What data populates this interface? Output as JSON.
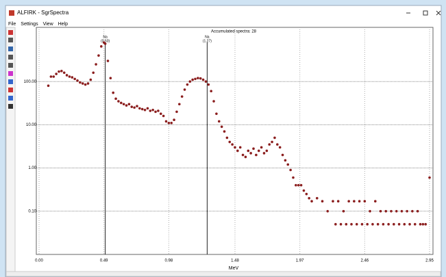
{
  "window": {
    "title": "ALFIRK - SgrSpectra",
    "menu": [
      "File",
      "Settings",
      "View",
      "Help"
    ]
  },
  "chart_data": {
    "type": "scatter",
    "title": "Accumulated spectra: 28",
    "x_label": "MeV",
    "color": "#8b1e1e",
    "log_y": true,
    "grid": true,
    "xlim": [
      0,
      2.95
    ],
    "ylim": [
      0.01,
      1000
    ],
    "xticks": [
      {
        "value": 0,
        "label": "0.00"
      },
      0.49,
      0.98,
      1.48,
      1.97,
      2.46,
      2.95
    ],
    "yticks": [
      {
        "value": 0.1,
        "label": "0.10"
      },
      {
        "value": 1,
        "label": "1.00"
      },
      {
        "value": 10,
        "label": "10.00"
      },
      {
        "value": 100,
        "label": "100.00"
      }
    ],
    "markers": [
      {
        "x": 0.5,
        "label": "Na",
        "sublabel": "(0.50)"
      },
      {
        "x": 1.27,
        "label": "Na",
        "sublabel": "(1.27)"
      }
    ],
    "x": [
      0.07,
      0.09,
      0.11,
      0.13,
      0.15,
      0.17,
      0.19,
      0.21,
      0.23,
      0.25,
      0.27,
      0.29,
      0.31,
      0.33,
      0.35,
      0.37,
      0.39,
      0.41,
      0.43,
      0.45,
      0.47,
      0.49,
      0.5,
      0.52,
      0.54,
      0.56,
      0.58,
      0.6,
      0.62,
      0.64,
      0.66,
      0.68,
      0.7,
      0.72,
      0.74,
      0.76,
      0.78,
      0.8,
      0.82,
      0.84,
      0.86,
      0.88,
      0.9,
      0.92,
      0.94,
      0.96,
      0.98,
      1.0,
      1.02,
      1.04,
      1.06,
      1.08,
      1.1,
      1.12,
      1.14,
      1.16,
      1.18,
      1.2,
      1.22,
      1.24,
      1.26,
      1.28,
      1.3,
      1.32,
      1.34,
      1.36,
      1.38,
      1.4,
      1.42,
      1.44,
      1.46,
      1.48,
      1.5,
      1.52,
      1.54,
      1.56,
      1.58,
      1.6,
      1.62,
      1.64,
      1.66,
      1.68,
      1.7,
      1.72,
      1.74,
      1.76,
      1.78,
      1.8,
      1.82,
      1.84,
      1.86,
      1.88,
      1.9,
      1.92,
      1.94,
      1.96,
      1.98,
      2.0,
      2.02,
      2.04,
      2.06,
      2.1,
      2.14,
      2.18,
      2.22,
      2.26,
      2.3,
      2.34,
      2.38,
      2.42,
      2.46,
      2.5,
      2.54,
      2.58,
      2.62,
      2.66,
      2.7,
      2.74,
      2.78,
      2.82,
      2.86,
      2.9,
      2.95,
      2.24,
      2.28,
      2.32,
      2.36,
      2.4,
      2.44,
      2.48,
      2.52,
      2.56,
      2.6,
      2.64,
      2.68,
      2.72,
      2.76,
      2.8,
      2.84,
      2.88,
      2.92
    ],
    "values": [
      80,
      130,
      130,
      150,
      170,
      175,
      160,
      140,
      130,
      125,
      115,
      105,
      95,
      90,
      85,
      90,
      110,
      160,
      250,
      400,
      650,
      800,
      750,
      300,
      120,
      55,
      40,
      35,
      32,
      30,
      28,
      30,
      26,
      25,
      27,
      24,
      23,
      22,
      24,
      21,
      22,
      20,
      21,
      18,
      16,
      12,
      11,
      11,
      13,
      20,
      30,
      45,
      65,
      85,
      100,
      110,
      115,
      120,
      118,
      110,
      100,
      85,
      60,
      35,
      18,
      12,
      9,
      7,
      5,
      4,
      3.5,
      3,
      2.5,
      3,
      2,
      1.8,
      2.5,
      2.2,
      2.8,
      2,
      2.5,
      3,
      2.2,
      2.5,
      3.5,
      4,
      5,
      3.5,
      3,
      2,
      1.5,
      1.2,
      0.9,
      0.6,
      0.4,
      0.4,
      0.4,
      0.3,
      0.25,
      0.2,
      0.17,
      0.2,
      0.17,
      0.1,
      0.17,
      0.17,
      0.1,
      0.17,
      0.17,
      0.17,
      0.17,
      0.1,
      0.17,
      0.1,
      0.1,
      0.1,
      0.1,
      0.1,
      0.1,
      0.1,
      0.1,
      0.05,
      0.6,
      0.05,
      0.05,
      0.05,
      0.05,
      0.05,
      0.05,
      0.05,
      0.05,
      0.05,
      0.05,
      0.05,
      0.05,
      0.05,
      0.05,
      0.05,
      0.05,
      0.05,
      0.05
    ]
  }
}
